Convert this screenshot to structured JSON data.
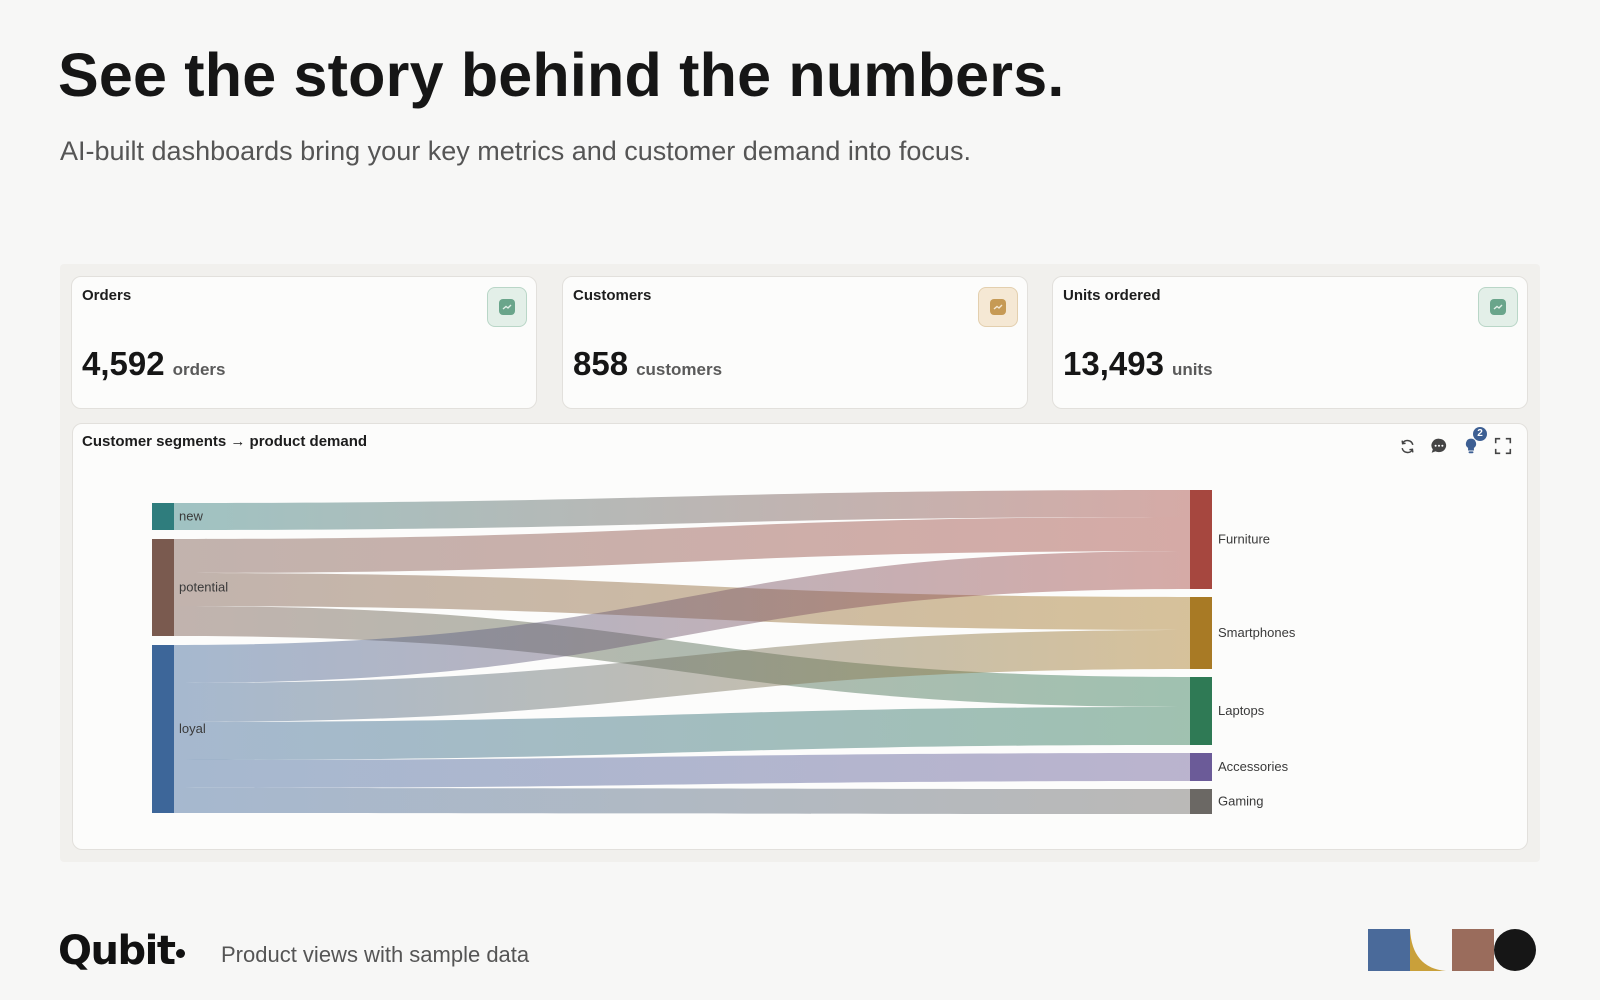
{
  "hero": {
    "title": "See the story behind the numbers.",
    "subtitle": "AI-built dashboards bring your key metrics and customer demand into focus."
  },
  "kpis": [
    {
      "label": "Orders",
      "value": "4,592",
      "unit": "orders",
      "icon": "trend-up-icon",
      "accent": "#6aa58b",
      "accent_bg": "#e3efe8"
    },
    {
      "label": "Customers",
      "value": "858",
      "unit": "customers",
      "icon": "trend-up-icon",
      "accent": "#c69a55",
      "accent_bg": "#f5e8d4"
    },
    {
      "label": "Units ordered",
      "value": "13,493",
      "unit": "units",
      "icon": "trend-up-icon",
      "accent": "#6aa58b",
      "accent_bg": "#e3efe8"
    }
  ],
  "chart_card": {
    "title": "Customer segments → product demand",
    "tools": [
      "refresh-icon",
      "comment-icon",
      "insight-bulb-icon",
      "fullscreen-icon"
    ],
    "insight_badge": "2"
  },
  "chart_data": {
    "type": "sankey",
    "sources": [
      {
        "name": "new",
        "color": "#2f7d7d"
      },
      {
        "name": "potential",
        "color": "#7a5a4f"
      },
      {
        "name": "loyal",
        "color": "#3d6699"
      }
    ],
    "targets": [
      {
        "name": "Furniture",
        "color": "#a6473f"
      },
      {
        "name": "Smartphones",
        "color": "#a87a25"
      },
      {
        "name": "Laptops",
        "color": "#2f7a55"
      },
      {
        "name": "Accessories",
        "color": "#6b5b98"
      },
      {
        "name": "Gaming",
        "color": "#6b6864"
      }
    ],
    "links": [
      {
        "source": "new",
        "target": "Furniture",
        "value": 27
      },
      {
        "source": "potential",
        "target": "Furniture",
        "value": 34
      },
      {
        "source": "potential",
        "target": "Smartphones",
        "value": 33
      },
      {
        "source": "potential",
        "target": "Laptops",
        "value": 30
      },
      {
        "source": "loyal",
        "target": "Furniture",
        "value": 38
      },
      {
        "source": "loyal",
        "target": "Smartphones",
        "value": 39
      },
      {
        "source": "loyal",
        "target": "Laptops",
        "value": 38
      },
      {
        "source": "loyal",
        "target": "Accessories",
        "value": 28
      },
      {
        "source": "loyal",
        "target": "Gaming",
        "value": 25
      }
    ]
  },
  "footer": {
    "logo": "Qubit",
    "caption": "Product views with sample data",
    "brand_colors": [
      "#4a6a9a",
      "#c9a03a",
      "#9a6c5c",
      "#161616"
    ]
  }
}
